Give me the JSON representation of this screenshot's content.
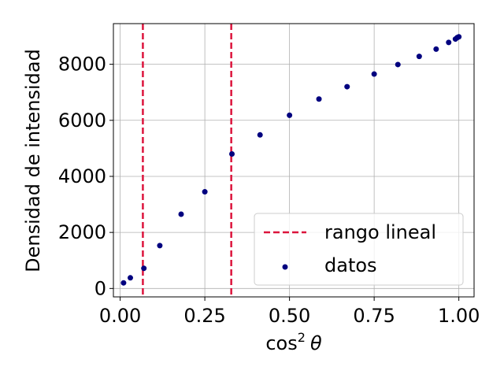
{
  "chart_data": {
    "type": "scatter",
    "xlabel_base": "cos",
    "xlabel_sup": "2",
    "xlabel_symbol": "θ",
    "ylabel": "Densidad de intensidad",
    "xlim": [
      -0.02,
      1.045
    ],
    "ylim": [
      -300,
      9450
    ],
    "x_ticks": [
      0.0,
      0.25,
      0.5,
      0.75,
      1.0
    ],
    "x_tick_labels": [
      "0.00",
      "0.25",
      "0.50",
      "0.75",
      "1.00"
    ],
    "y_ticks": [
      0,
      2000,
      4000,
      6000,
      8000
    ],
    "y_tick_labels": [
      "0",
      "2000",
      "4000",
      "6000",
      "8000"
    ],
    "grid": true,
    "legend_position": "lower-right",
    "series": [
      {
        "name": "datos",
        "kind": "points",
        "color": "#00007f",
        "points": [
          {
            "x": 0.01,
            "y": 200
          },
          {
            "x": 0.03,
            "y": 380
          },
          {
            "x": 0.07,
            "y": 720
          },
          {
            "x": 0.117,
            "y": 1530
          },
          {
            "x": 0.18,
            "y": 2650
          },
          {
            "x": 0.25,
            "y": 3450
          },
          {
            "x": 0.33,
            "y": 4800
          },
          {
            "x": 0.413,
            "y": 5480
          },
          {
            "x": 0.5,
            "y": 6180
          },
          {
            "x": 0.587,
            "y": 6760
          },
          {
            "x": 0.67,
            "y": 7200
          },
          {
            "x": 0.75,
            "y": 7650
          },
          {
            "x": 0.82,
            "y": 7990
          },
          {
            "x": 0.883,
            "y": 8280
          },
          {
            "x": 0.933,
            "y": 8540
          },
          {
            "x": 0.97,
            "y": 8780
          },
          {
            "x": 0.99,
            "y": 8900
          },
          {
            "x": 0.995,
            "y": 8950
          },
          {
            "x": 1.0,
            "y": 8980
          }
        ]
      },
      {
        "name": "rango lineal",
        "kind": "vlines",
        "color": "#dc143c",
        "x_values": [
          0.067,
          0.328
        ]
      }
    ]
  }
}
